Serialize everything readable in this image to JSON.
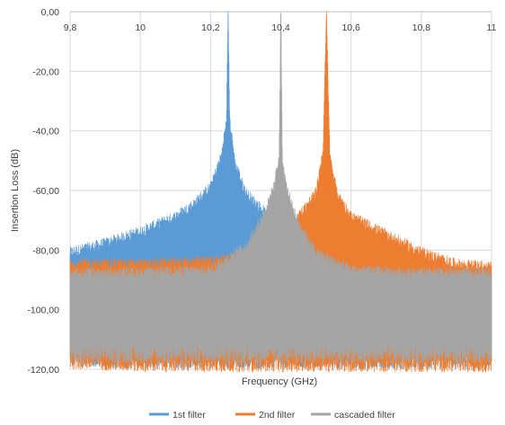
{
  "chart_data": {
    "type": "line",
    "title": "",
    "xlabel": "Frequency (GHz)",
    "ylabel": "Insertion Loss (dB)",
    "xlim": [
      9.8,
      11
    ],
    "ylim": [
      -120,
      0
    ],
    "x_ticks": [
      9.8,
      10,
      10.2,
      10.4,
      10.6,
      10.8,
      11
    ],
    "x_tick_labels": [
      "9,8",
      "10",
      "10,2",
      "10,4",
      "10,6",
      "10,8",
      "11"
    ],
    "y_ticks": [
      0,
      -20,
      -40,
      -60,
      -80,
      -100,
      -120
    ],
    "y_tick_labels": [
      "0,00",
      "-20,00",
      "-40,00",
      "-60,00",
      "-80,00",
      "-100,00",
      "-120,00"
    ],
    "x_axis_position": "top",
    "grid": true,
    "legend_position": "bottom",
    "series": [
      {
        "name": "1st filter",
        "color": "#5b9bd5",
        "peak_x": 10.25,
        "peak_y": -1,
        "envelope": {
          "x": [
            9.8,
            9.9,
            10.0,
            10.1,
            10.15,
            10.2,
            10.23,
            10.245,
            10.25,
            10.255,
            10.27,
            10.3,
            10.35,
            10.4,
            10.6,
            10.8,
            11.0
          ],
          "top": [
            -82,
            -79,
            -75,
            -70,
            -66,
            -60,
            -50,
            -38,
            -1,
            -38,
            -52,
            -62,
            -68,
            -75,
            -86,
            -88,
            -89
          ],
          "bottom": [
            -116,
            -117,
            -117,
            -117,
            -117,
            -117,
            -117,
            -117,
            -117,
            -117,
            -117,
            -117,
            -117,
            -117,
            -117,
            -117,
            -117
          ]
        }
      },
      {
        "name": "2nd filter",
        "color": "#ed7d31",
        "peak_x": 10.53,
        "peak_y": -1,
        "envelope": {
          "x": [
            9.8,
            10.0,
            10.2,
            10.3,
            10.4,
            10.45,
            10.5,
            10.52,
            10.53,
            10.54,
            10.56,
            10.6,
            10.7,
            10.8,
            10.9,
            11.0
          ],
          "top": [
            -86,
            -86,
            -85,
            -83,
            -75,
            -70,
            -62,
            -48,
            -1,
            -50,
            -62,
            -70,
            -76,
            -82,
            -86,
            -87
          ],
          "bottom": [
            -117,
            -118,
            -118,
            -118,
            -118,
            -118,
            -118,
            -118,
            -118,
            -118,
            -118,
            -118,
            -118,
            -118,
            -118,
            -118
          ]
        }
      },
      {
        "name": "cascaded filter",
        "color": "#a5a5a5",
        "peak_x": 10.4,
        "peak_y": -1,
        "envelope": {
          "x": [
            9.8,
            10.0,
            10.2,
            10.3,
            10.35,
            10.38,
            10.395,
            10.4,
            10.405,
            10.42,
            10.45,
            10.5,
            10.6,
            10.8,
            11.0
          ],
          "top": [
            -89,
            -89,
            -88,
            -80,
            -70,
            -60,
            -50,
            -1,
            -52,
            -62,
            -72,
            -82,
            -88,
            -89,
            -89
          ],
          "bottom": [
            -115,
            -115,
            -115,
            -115,
            -115,
            -115,
            -115,
            -115,
            -115,
            -115,
            -115,
            -115,
            -115,
            -115,
            -115
          ]
        }
      }
    ]
  }
}
